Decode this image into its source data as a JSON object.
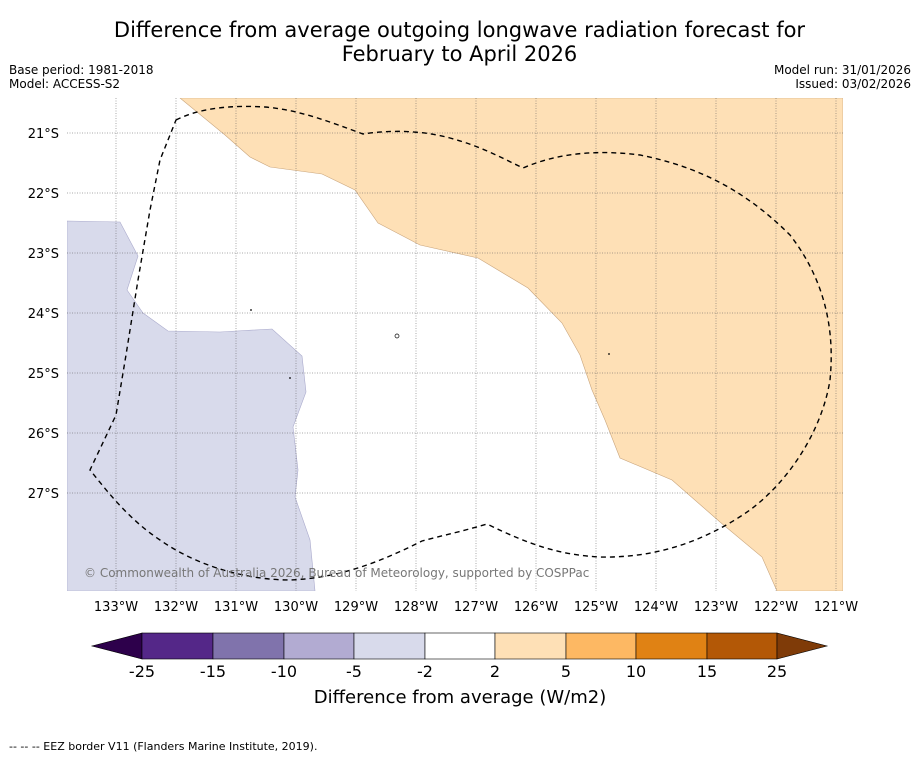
{
  "title": {
    "line1": "Difference from average outgoing longwave radiation forecast for",
    "line2": "February to April 2026"
  },
  "meta": {
    "base_period": "Base period: 1981-2018",
    "model": "Model: ACCESS-S2",
    "model_run": "Model run: 31/01/2026",
    "issued": "Issued: 03/02/2026"
  },
  "map": {
    "lat_labels": [
      "21°S",
      "22°S",
      "23°S",
      "24°S",
      "25°S",
      "26°S",
      "27°S"
    ],
    "lon_labels": [
      "133°W",
      "132°W",
      "131°W",
      "130°W",
      "129°W",
      "128°W",
      "127°W",
      "126°W",
      "125°W",
      "124°W",
      "123°W",
      "122°W",
      "121°W"
    ],
    "copyright": "© Commonwealth of Australia 2026, Bureau of Meteorology, supported by COSPPac"
  },
  "legend": {
    "title": "Difference from average (W/m2)",
    "ticks": [
      "-25",
      "-15",
      "-10",
      "-5",
      "-2",
      "2",
      "5",
      "10",
      "15",
      "25"
    ],
    "colors": {
      "under": "#2d004b",
      "c1": "#542788",
      "c2": "#8073ac",
      "c3": "#b2abd2",
      "c4": "#d8daeb",
      "c5": "#ffffff",
      "c6": "#fee0b6",
      "c7": "#fdb863",
      "c8": "#e08214",
      "c9": "#b35806",
      "over": "#7f3b08"
    }
  },
  "footer": "--  --  -- EEZ border V11 (Flanders Marine Institute, 2019)."
}
